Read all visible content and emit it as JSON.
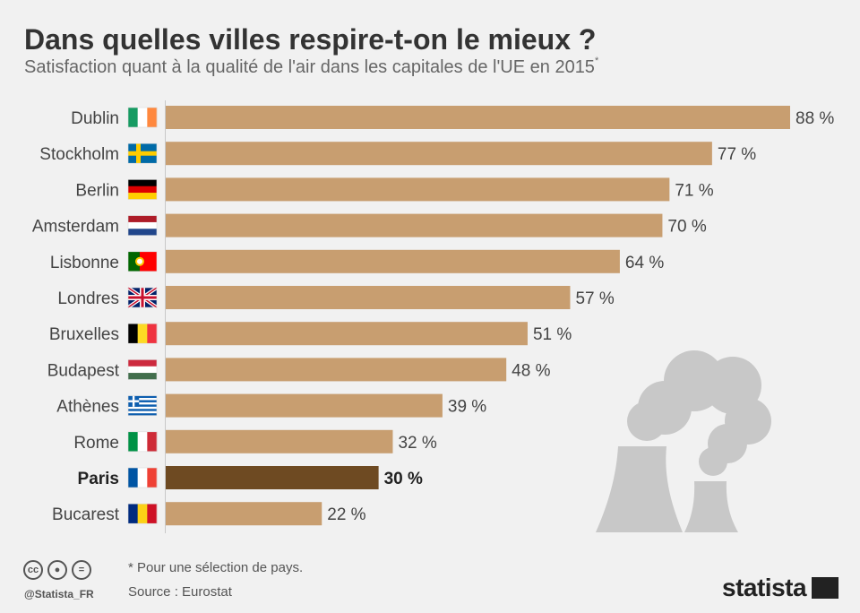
{
  "header": {
    "title": "Dans quelles villes respire-t-on le mieux ?",
    "subtitle": "Satisfaction quant à la qualité de l'air dans les capitales de l'UE en 2015",
    "subtitle_mark": "*"
  },
  "chart_data": {
    "type": "bar",
    "orientation": "horizontal",
    "title": "Dans quelles villes respire-t-on le mieux ?",
    "subtitle": "Satisfaction quant à la qualité de l'air dans les capitales de l'UE en 2015*",
    "categories": [
      "Dublin",
      "Stockholm",
      "Berlin",
      "Amsterdam",
      "Lisbonne",
      "Londres",
      "Bruxelles",
      "Budapest",
      "Athènes",
      "Rome",
      "Paris",
      "Bucarest"
    ],
    "values": [
      88,
      77,
      71,
      70,
      64,
      57,
      51,
      48,
      39,
      32,
      30,
      22
    ],
    "value_labels": [
      "88 %",
      "77 %",
      "71 %",
      "70 %",
      "64 %",
      "57 %",
      "51 %",
      "48 %",
      "39 %",
      "32 %",
      "30 %",
      "22 %"
    ],
    "highlight": "Paris",
    "xlim": [
      0,
      88
    ],
    "grid": false,
    "colors": {
      "bar": "#c89e70",
      "highlight": "#6e4a22",
      "illustration": "#c8c8c8"
    },
    "flags": [
      "flag-ireland-icon",
      "flag-sweden-icon",
      "flag-germany-icon",
      "flag-netherlands-icon",
      "flag-portugal-icon",
      "flag-uk-icon",
      "flag-belgium-icon",
      "flag-hungary-icon",
      "flag-greece-icon",
      "flag-italy-icon",
      "flag-france-icon",
      "flag-romania-icon"
    ]
  },
  "footer": {
    "note": "* Pour une sélection de pays.",
    "source": "Source : Eurostat",
    "handle": "@Statista_FR",
    "brand": "statista",
    "license_icons": [
      "cc-icon",
      "by-icon",
      "nd-icon"
    ]
  }
}
